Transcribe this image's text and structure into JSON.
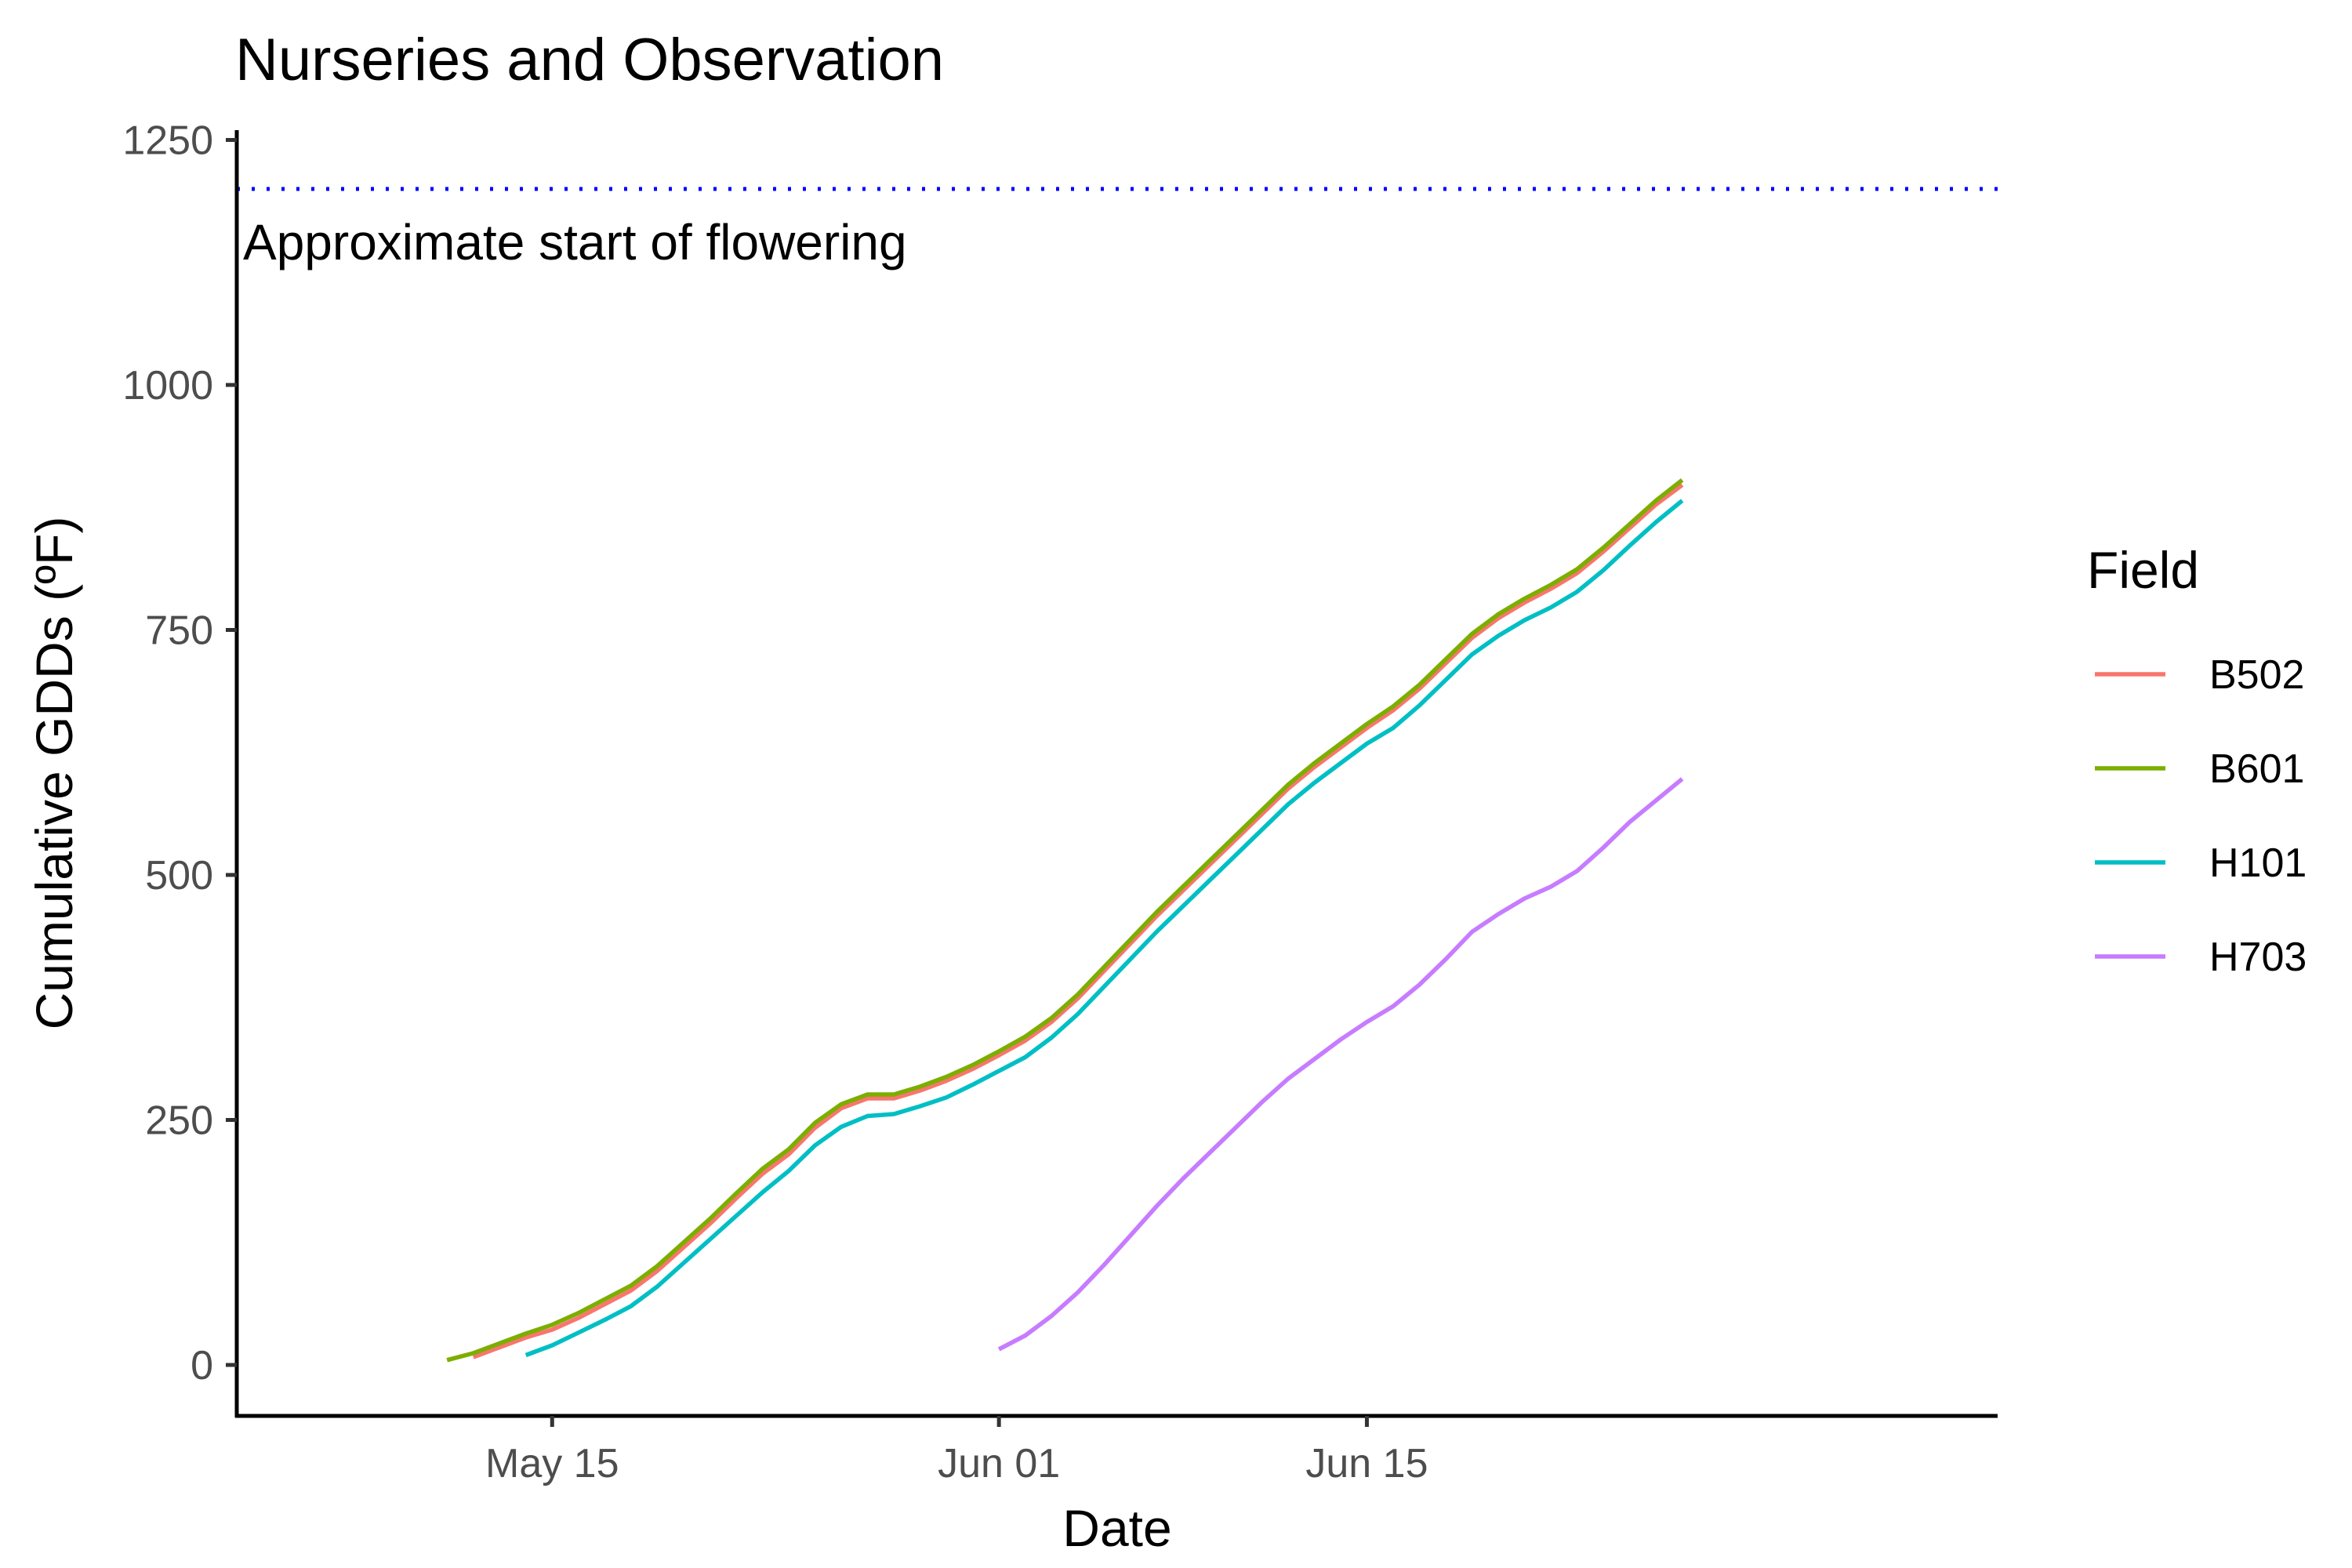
{
  "chart_data": {
    "type": "line",
    "title": "Nurseries and Observation",
    "xlabel": "Date",
    "ylabel": "Cumulative GDDs (ºF)",
    "x_axis": {
      "kind": "date",
      "range": [
        "2023-05-03",
        "2023-07-09"
      ],
      "ticks": [
        {
          "date": "2023-05-15",
          "label": "May 15"
        },
        {
          "date": "2023-06-01",
          "label": "Jun 01"
        },
        {
          "date": "2023-06-15",
          "label": "Jun 15"
        }
      ]
    },
    "y_axis": {
      "range": [
        -52,
        1260
      ],
      "ticks": [
        0,
        250,
        500,
        750,
        1000,
        1250
      ],
      "tick_labels": [
        "0",
        "250",
        "500",
        "750",
        "1000",
        "1250"
      ]
    },
    "grid": false,
    "legend": {
      "title": "Field",
      "position": "right"
    },
    "reference_line": {
      "y": 1200,
      "style": "dotted",
      "color": "#0000ff",
      "label": "Approximate start of flowering"
    },
    "series": [
      {
        "name": "B502",
        "color": "#f8766d",
        "points": [
          [
            "2023-05-12",
            8
          ],
          [
            "2023-05-13",
            18
          ],
          [
            "2023-05-14",
            28
          ],
          [
            "2023-05-15",
            36
          ],
          [
            "2023-05-16",
            48
          ],
          [
            "2023-05-17",
            62
          ],
          [
            "2023-05-18",
            76
          ],
          [
            "2023-05-19",
            96
          ],
          [
            "2023-05-20",
            120
          ],
          [
            "2023-05-21",
            144
          ],
          [
            "2023-05-22",
            170
          ],
          [
            "2023-05-23",
            195
          ],
          [
            "2023-05-24",
            215
          ],
          [
            "2023-05-25",
            242
          ],
          [
            "2023-05-26",
            262
          ],
          [
            "2023-05-27",
            272
          ],
          [
            "2023-05-28",
            272
          ],
          [
            "2023-05-29",
            280
          ],
          [
            "2023-05-30",
            290
          ],
          [
            "2023-05-31",
            302
          ],
          [
            "2023-06-01",
            316
          ],
          [
            "2023-06-02",
            331
          ],
          [
            "2023-06-03",
            350
          ],
          [
            "2023-06-04",
            374
          ],
          [
            "2023-06-05",
            402
          ],
          [
            "2023-06-06",
            430
          ],
          [
            "2023-06-07",
            458
          ],
          [
            "2023-06-08",
            484
          ],
          [
            "2023-06-09",
            510
          ],
          [
            "2023-06-10",
            536
          ],
          [
            "2023-06-11",
            562
          ],
          [
            "2023-06-12",
            588
          ],
          [
            "2023-06-13",
            610
          ],
          [
            "2023-06-14",
            630
          ],
          [
            "2023-06-15",
            650
          ],
          [
            "2023-06-16",
            668
          ],
          [
            "2023-06-17",
            690
          ],
          [
            "2023-06-18",
            716
          ],
          [
            "2023-06-19",
            742
          ],
          [
            "2023-06-20",
            762
          ],
          [
            "2023-06-21",
            778
          ],
          [
            "2023-06-22",
            792
          ],
          [
            "2023-06-23",
            808
          ],
          [
            "2023-06-24",
            830
          ],
          [
            "2023-06-25",
            854
          ],
          [
            "2023-06-26",
            878
          ],
          [
            "2023-06-27",
            898
          ]
        ]
      },
      {
        "name": "B601",
        "color": "#7cae00",
        "points": [
          [
            "2023-05-11",
            5
          ],
          [
            "2023-05-12",
            12
          ],
          [
            "2023-05-13",
            22
          ],
          [
            "2023-05-14",
            32
          ],
          [
            "2023-05-15",
            41
          ],
          [
            "2023-05-16",
            53
          ],
          [
            "2023-05-17",
            67
          ],
          [
            "2023-05-18",
            81
          ],
          [
            "2023-05-19",
            101
          ],
          [
            "2023-05-20",
            125
          ],
          [
            "2023-05-21",
            149
          ],
          [
            "2023-05-22",
            175
          ],
          [
            "2023-05-23",
            200
          ],
          [
            "2023-05-24",
            220
          ],
          [
            "2023-05-25",
            247
          ],
          [
            "2023-05-26",
            266
          ],
          [
            "2023-05-27",
            276
          ],
          [
            "2023-05-28",
            276
          ],
          [
            "2023-05-29",
            284
          ],
          [
            "2023-05-30",
            294
          ],
          [
            "2023-05-31",
            306
          ],
          [
            "2023-06-01",
            320
          ],
          [
            "2023-06-02",
            335
          ],
          [
            "2023-06-03",
            354
          ],
          [
            "2023-06-04",
            378
          ],
          [
            "2023-06-05",
            406
          ],
          [
            "2023-06-06",
            434
          ],
          [
            "2023-06-07",
            462
          ],
          [
            "2023-06-08",
            488
          ],
          [
            "2023-06-09",
            514
          ],
          [
            "2023-06-10",
            540
          ],
          [
            "2023-06-11",
            566
          ],
          [
            "2023-06-12",
            592
          ],
          [
            "2023-06-13",
            614
          ],
          [
            "2023-06-14",
            634
          ],
          [
            "2023-06-15",
            654
          ],
          [
            "2023-06-16",
            672
          ],
          [
            "2023-06-17",
            694
          ],
          [
            "2023-06-18",
            720
          ],
          [
            "2023-06-19",
            746
          ],
          [
            "2023-06-20",
            766
          ],
          [
            "2023-06-21",
            782
          ],
          [
            "2023-06-22",
            796
          ],
          [
            "2023-06-23",
            812
          ],
          [
            "2023-06-24",
            834
          ],
          [
            "2023-06-25",
            858
          ],
          [
            "2023-06-26",
            882
          ],
          [
            "2023-06-27",
            903
          ]
        ]
      },
      {
        "name": "H101",
        "color": "#00bfc4",
        "points": [
          [
            "2023-05-14",
            10
          ],
          [
            "2023-05-15",
            20
          ],
          [
            "2023-05-16",
            33
          ],
          [
            "2023-05-17",
            46
          ],
          [
            "2023-05-18",
            60
          ],
          [
            "2023-05-19",
            80
          ],
          [
            "2023-05-20",
            104
          ],
          [
            "2023-05-21",
            128
          ],
          [
            "2023-05-22",
            152
          ],
          [
            "2023-05-23",
            176
          ],
          [
            "2023-05-24",
            198
          ],
          [
            "2023-05-25",
            224
          ],
          [
            "2023-05-26",
            243
          ],
          [
            "2023-05-27",
            254
          ],
          [
            "2023-05-28",
            256
          ],
          [
            "2023-05-29",
            264
          ],
          [
            "2023-05-30",
            273
          ],
          [
            "2023-05-31",
            286
          ],
          [
            "2023-06-01",
            300
          ],
          [
            "2023-06-02",
            314
          ],
          [
            "2023-06-03",
            334
          ],
          [
            "2023-06-04",
            358
          ],
          [
            "2023-06-05",
            386
          ],
          [
            "2023-06-06",
            414
          ],
          [
            "2023-06-07",
            442
          ],
          [
            "2023-06-08",
            468
          ],
          [
            "2023-06-09",
            494
          ],
          [
            "2023-06-10",
            520
          ],
          [
            "2023-06-11",
            546
          ],
          [
            "2023-06-12",
            572
          ],
          [
            "2023-06-13",
            594
          ],
          [
            "2023-06-14",
            614
          ],
          [
            "2023-06-15",
            634
          ],
          [
            "2023-06-16",
            650
          ],
          [
            "2023-06-17",
            673
          ],
          [
            "2023-06-18",
            699
          ],
          [
            "2023-06-19",
            725
          ],
          [
            "2023-06-20",
            744
          ],
          [
            "2023-06-21",
            760
          ],
          [
            "2023-06-22",
            773
          ],
          [
            "2023-06-23",
            789
          ],
          [
            "2023-06-24",
            811
          ],
          [
            "2023-06-25",
            836
          ],
          [
            "2023-06-26",
            860
          ],
          [
            "2023-06-27",
            882
          ]
        ]
      },
      {
        "name": "H703",
        "color": "#c77cff",
        "points": [
          [
            "2023-06-01",
            16
          ],
          [
            "2023-06-02",
            30
          ],
          [
            "2023-06-03",
            50
          ],
          [
            "2023-06-04",
            74
          ],
          [
            "2023-06-05",
            102
          ],
          [
            "2023-06-06",
            132
          ],
          [
            "2023-06-07",
            162
          ],
          [
            "2023-06-08",
            190
          ],
          [
            "2023-06-09",
            216
          ],
          [
            "2023-06-10",
            242
          ],
          [
            "2023-06-11",
            268
          ],
          [
            "2023-06-12",
            292
          ],
          [
            "2023-06-13",
            312
          ],
          [
            "2023-06-14",
            332
          ],
          [
            "2023-06-15",
            350
          ],
          [
            "2023-06-16",
            366
          ],
          [
            "2023-06-17",
            388
          ],
          [
            "2023-06-18",
            414
          ],
          [
            "2023-06-19",
            442
          ],
          [
            "2023-06-20",
            460
          ],
          [
            "2023-06-21",
            476
          ],
          [
            "2023-06-22",
            488
          ],
          [
            "2023-06-23",
            504
          ],
          [
            "2023-06-24",
            528
          ],
          [
            "2023-06-25",
            554
          ],
          [
            "2023-06-26",
            576
          ],
          [
            "2023-06-27",
            598
          ]
        ]
      }
    ]
  }
}
